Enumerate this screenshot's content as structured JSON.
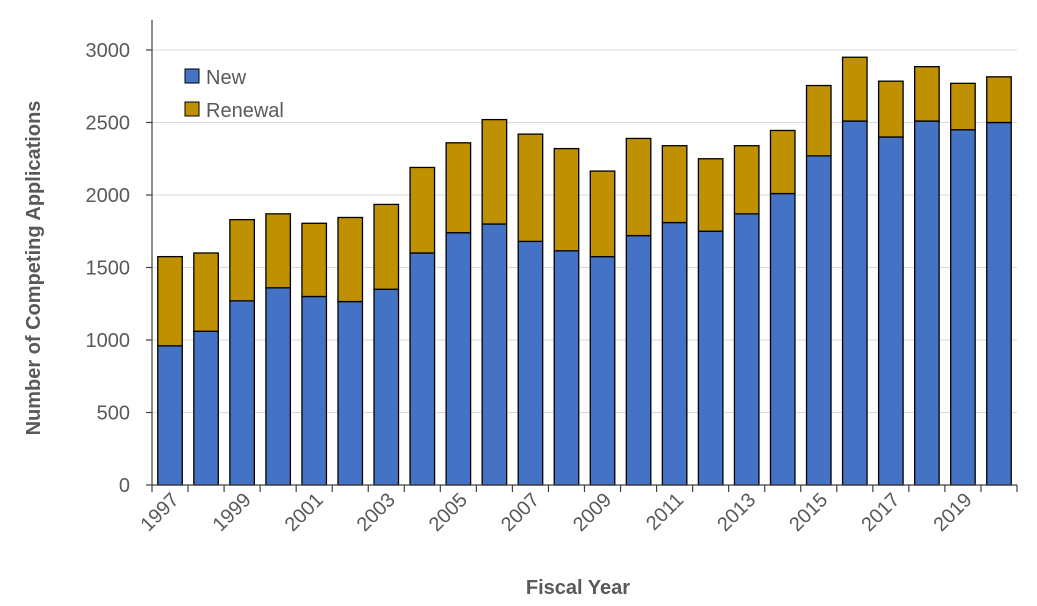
{
  "chart_data": {
    "type": "bar",
    "stacked": true,
    "title": "",
    "xlabel": "Fiscal Year",
    "ylabel": "Number of Competing Applications",
    "ylim": [
      0,
      3000
    ],
    "yticks": [
      "0",
      "500",
      "1000",
      "1500",
      "2000",
      "2500",
      "3000"
    ],
    "categories": [
      "1997",
      "1998",
      "1999",
      "2000",
      "2001",
      "2002",
      "2003",
      "2004",
      "2005",
      "2006",
      "2007",
      "2008",
      "2009",
      "2010",
      "2011",
      "2012",
      "2013",
      "2014",
      "2015",
      "2016",
      "2017",
      "2018",
      "2019",
      "2020"
    ],
    "xtick_labels": [
      "1997",
      "1999",
      "2001",
      "2003",
      "2005",
      "2007",
      "2009",
      "2011",
      "2013",
      "2015",
      "2017",
      "2019"
    ],
    "series": [
      {
        "name": "New",
        "color": "#4472C4",
        "values": [
          960,
          1060,
          1270,
          1360,
          1300,
          1265,
          1350,
          1600,
          1740,
          1800,
          1680,
          1615,
          1575,
          1720,
          1810,
          1750,
          1870,
          2010,
          2270,
          2510,
          2400,
          2510,
          2450,
          2500
        ]
      },
      {
        "name": "Renewal",
        "color": "#BF9000",
        "values": [
          615,
          540,
          560,
          510,
          505,
          580,
          585,
          590,
          620,
          720,
          740,
          705,
          590,
          670,
          530,
          500,
          470,
          435,
          485,
          440,
          385,
          375,
          320,
          315
        ]
      }
    ],
    "legend": {
      "position": "top-left"
    },
    "grid": {
      "y": true,
      "x": false
    }
  }
}
